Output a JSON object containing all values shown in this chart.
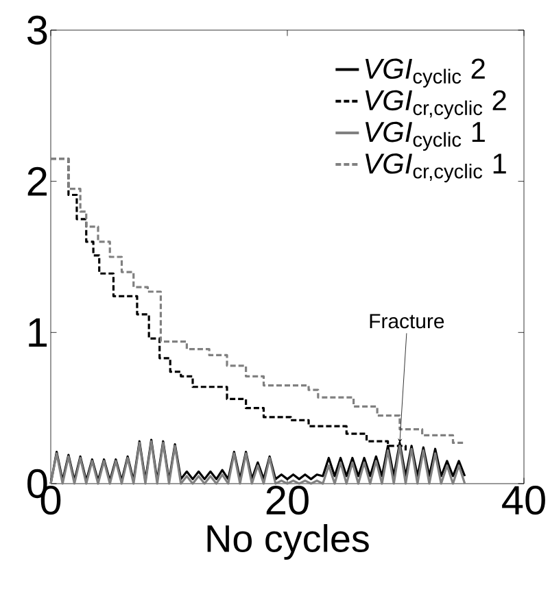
{
  "chart_data": {
    "type": "line",
    "xlabel": "No cycles",
    "xlim": [
      0,
      40
    ],
    "xticks": [
      0,
      20,
      40
    ],
    "ylim": [
      0,
      3
    ],
    "yticks": [
      0,
      1,
      2,
      3
    ],
    "legend": "top right",
    "annotations": [
      {
        "text": "Fracture",
        "x": 29.5,
        "y": 0.27
      }
    ],
    "series": [
      {
        "name": "*VGI*$_{cyclic}$ 2",
        "line_style": "solid",
        "color": "#000000",
        "x": [
          0,
          0.5,
          1,
          1.5,
          2,
          2.5,
          3,
          3.5,
          4,
          4.5,
          5,
          5.5,
          6,
          6.5,
          7,
          7.5,
          8,
          8.5,
          9,
          9.5,
          10,
          10.5,
          11,
          11.5,
          12,
          12.5,
          13,
          13.5,
          14,
          14.5,
          15,
          15.5,
          16,
          16.5,
          17,
          17.5,
          18,
          18.5,
          19,
          19.5,
          20,
          20.5,
          21,
          21.5,
          22,
          22.5,
          23,
          23.5,
          24,
          24.5,
          25,
          25.5,
          26,
          26.5,
          27,
          27.5,
          28,
          28.5,
          29,
          29.5,
          30,
          30.5,
          31,
          31.5,
          32,
          32.5,
          33,
          33.5,
          34,
          34.5,
          35
        ],
        "values": [
          0,
          0.21,
          0.02,
          0.19,
          0.02,
          0.18,
          0.02,
          0.16,
          0.02,
          0.16,
          0.02,
          0.16,
          0.02,
          0.18,
          0.02,
          0.28,
          0.02,
          0.29,
          0.02,
          0.28,
          0.02,
          0.26,
          0.03,
          0.08,
          0.03,
          0.08,
          0.03,
          0.08,
          0.03,
          0.09,
          0.03,
          0.21,
          0.03,
          0.21,
          0.03,
          0.14,
          0.03,
          0.18,
          0.03,
          0.06,
          0.03,
          0.06,
          0.03,
          0.06,
          0.03,
          0.06,
          0.05,
          0.17,
          0.05,
          0.17,
          0.05,
          0.17,
          0.05,
          0.17,
          0.05,
          0.18,
          0.05,
          0.25,
          0.05,
          0.27,
          0.05,
          0.25,
          0.05,
          0.24,
          0.05,
          0.23,
          0.05,
          0.15,
          0.05,
          0.15,
          0.05
        ]
      },
      {
        "name": "*VGI*$_{cr,cyclic}$ 2",
        "type": "step",
        "line_style": "dashed",
        "color": "#000000",
        "x": [
          0,
          1.5,
          2.2,
          3,
          3.6,
          4.1,
          5.3,
          7.3,
          8.3,
          9.2,
          10.1,
          11,
          12,
          14.9,
          16.5,
          18,
          20.3,
          21.8,
          25,
          26.7,
          28.5,
          30
        ],
        "values": [
          2.15,
          1.91,
          1.75,
          1.6,
          1.51,
          1.39,
          1.24,
          1.12,
          0.96,
          0.83,
          0.74,
          0.71,
          0.64,
          0.56,
          0.5,
          0.44,
          0.42,
          0.38,
          0.33,
          0.28,
          0.25,
          0.22
        ]
      },
      {
        "name": "*VGI*$_{cyclic}$ 1",
        "line_style": "solid",
        "color": "#808080",
        "x": [
          0,
          0.5,
          1,
          1.5,
          2,
          2.5,
          3,
          3.5,
          4,
          4.5,
          5,
          5.5,
          6,
          6.5,
          7,
          7.5,
          8,
          8.5,
          9,
          9.5,
          10,
          10.5,
          11,
          11.5,
          12,
          12.5,
          13,
          13.5,
          14,
          14.5,
          15,
          15.5,
          16,
          16.5,
          17,
          17.5,
          18,
          18.5,
          19,
          19.5,
          20,
          20.5,
          21,
          21.5,
          22,
          22.5,
          23,
          23.5,
          24,
          24.5,
          25,
          25.5,
          26,
          26.5,
          27,
          27.5,
          28,
          28.5,
          29,
          29.5,
          30,
          30.5,
          31,
          31.5,
          32,
          32.5,
          33,
          33.5,
          34,
          34.5,
          35
        ],
        "values": [
          0,
          0.2,
          0,
          0.18,
          0,
          0.17,
          0,
          0.15,
          0,
          0.15,
          0,
          0.15,
          0,
          0.17,
          0,
          0.27,
          0,
          0.28,
          0,
          0.27,
          0,
          0.25,
          0,
          0.05,
          0,
          0.05,
          0,
          0.05,
          0,
          0.06,
          0,
          0.2,
          0,
          0.2,
          0,
          0.12,
          0,
          0.17,
          0,
          0.02,
          0,
          0.02,
          0,
          0.02,
          0,
          0.02,
          0,
          0.12,
          0,
          0.14,
          0,
          0.14,
          0,
          0.14,
          0,
          0.15,
          0,
          0.22,
          0,
          0.25,
          0,
          0.23,
          0,
          0.22,
          0,
          0.2,
          0,
          0.12,
          0,
          0.12,
          0
        ]
      },
      {
        "name": "*VGI*$_{cr,cyclic}$ 1",
        "type": "step",
        "line_style": "dashed",
        "color": "#808080",
        "x": [
          0,
          1.5,
          2.5,
          3,
          4,
          5,
          6,
          7,
          8.2,
          9.3,
          11.5,
          13.4,
          14.9,
          16.5,
          18,
          21.8,
          22.6,
          25.6,
          27.6,
          29.5,
          31.4,
          34,
          35
        ],
        "values": [
          2.15,
          1.95,
          1.8,
          1.7,
          1.6,
          1.5,
          1.4,
          1.3,
          1.27,
          0.94,
          0.89,
          0.85,
          0.78,
          0.71,
          0.65,
          0.62,
          0.57,
          0.51,
          0.45,
          0.36,
          0.32,
          0.27,
          0.27
        ]
      }
    ]
  }
}
